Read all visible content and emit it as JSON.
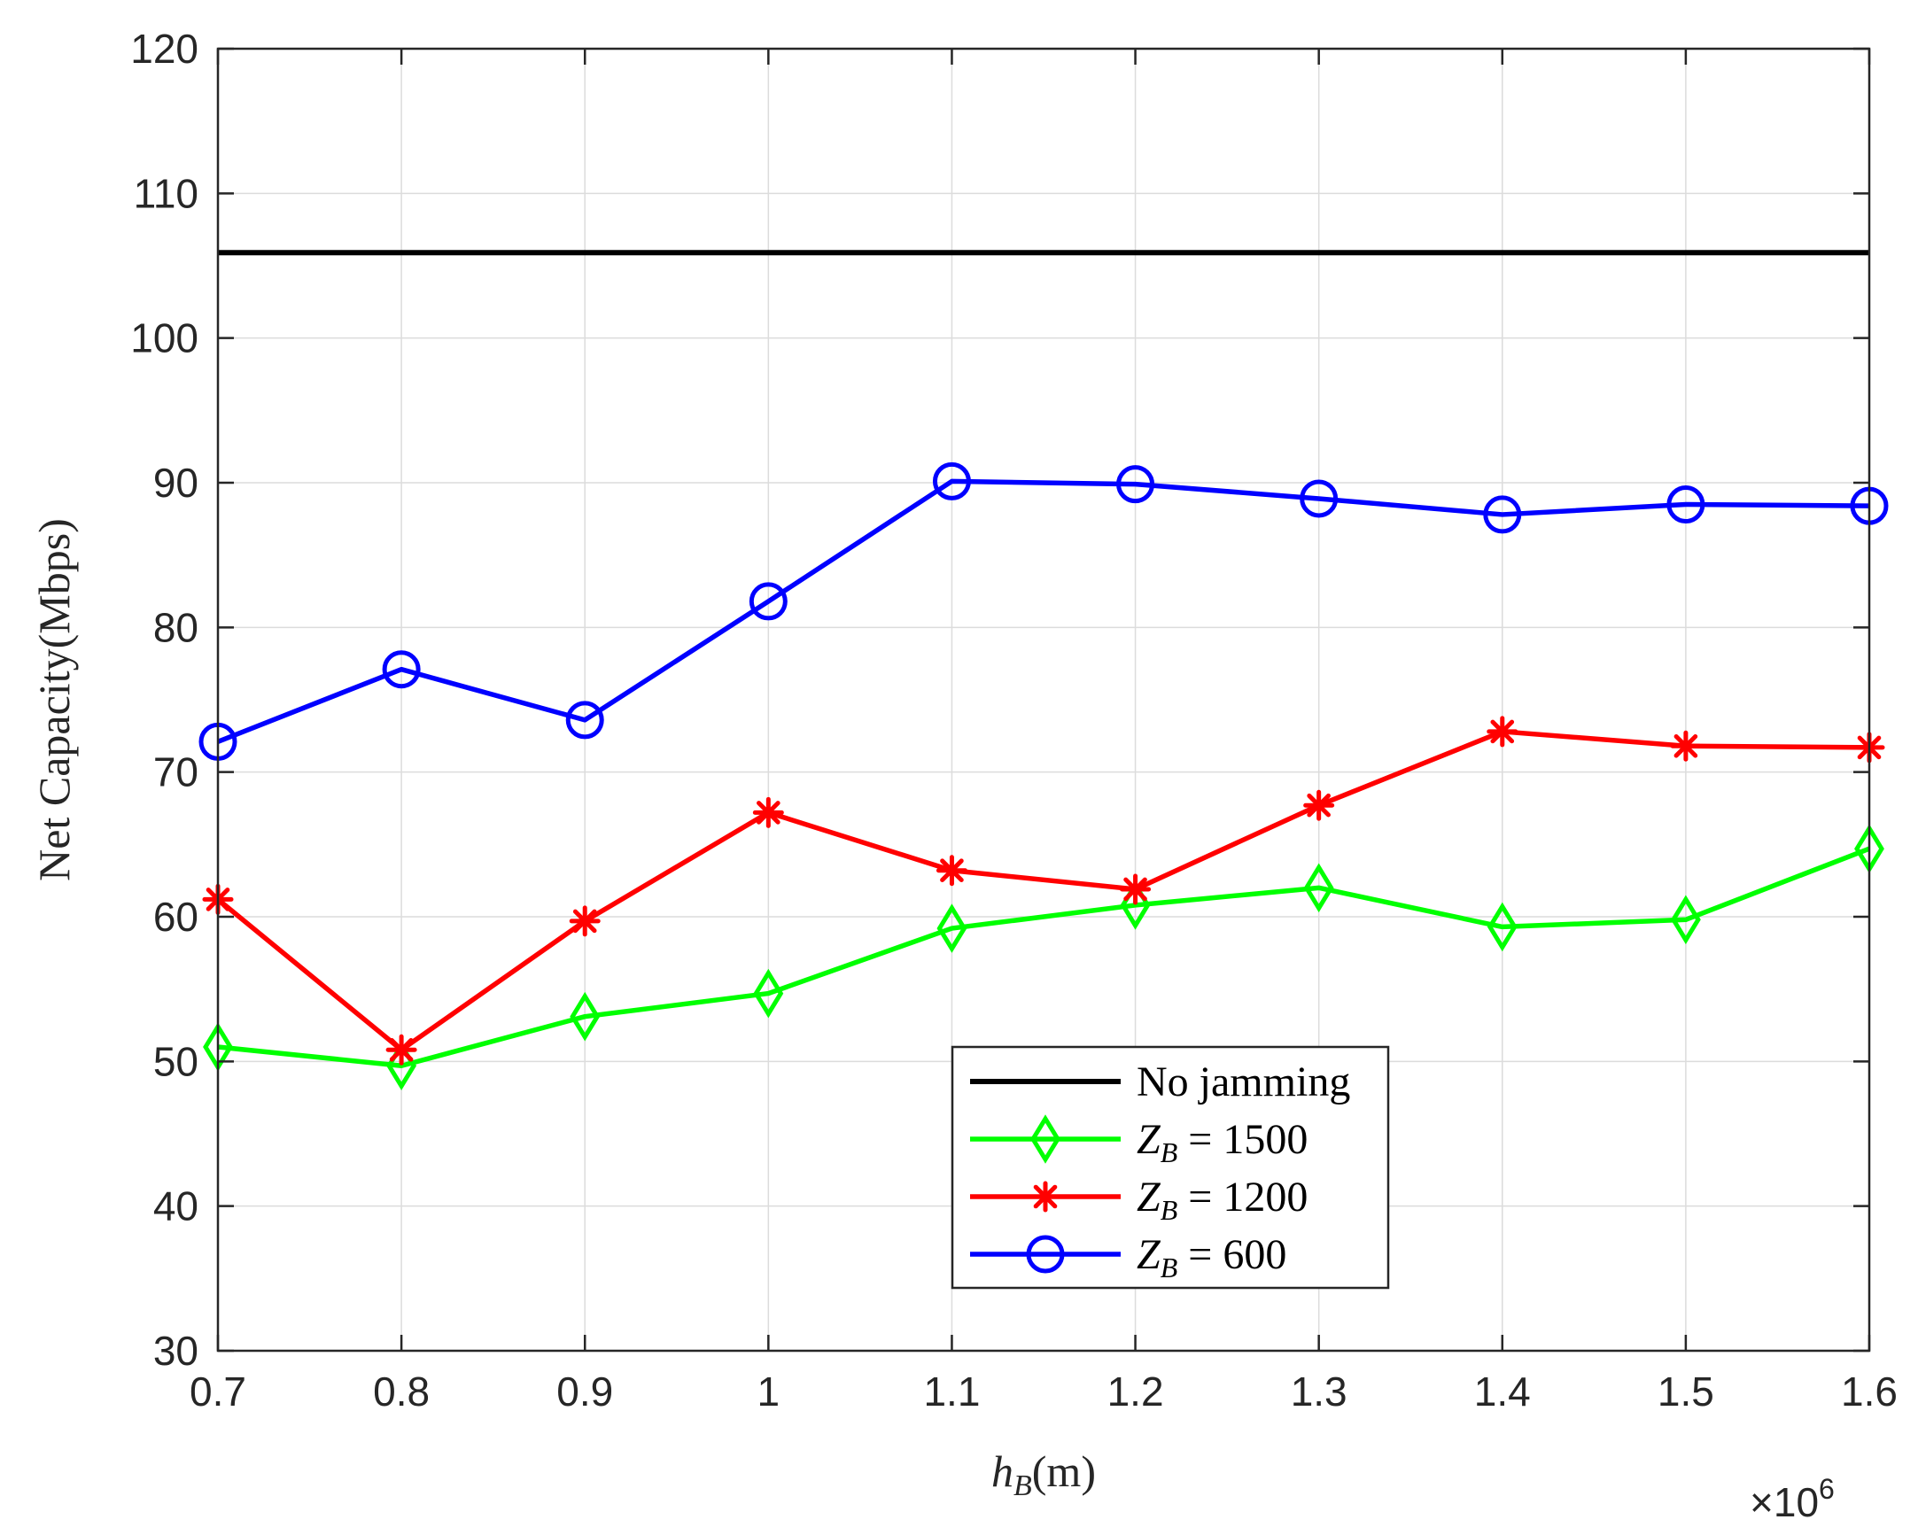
{
  "chart_data": {
    "type": "line",
    "title": "",
    "xlabel": {
      "base": "h",
      "sub": "B",
      "rest": "(m)"
    },
    "ylabel": "Net Capacity(Mbps)",
    "x_multiplier_label": "×10",
    "x_multiplier_exp": "6",
    "x": [
      0.7,
      0.8,
      0.9,
      1.0,
      1.1,
      1.2,
      1.3,
      1.4,
      1.5,
      1.6
    ],
    "x_tick_labels": [
      "0.7",
      "0.8",
      "0.9",
      "1",
      "1.1",
      "1.2",
      "1.3",
      "1.4",
      "1.5",
      "1.6"
    ],
    "xlim": [
      0.7,
      1.6
    ],
    "ylim": [
      30,
      120
    ],
    "y_ticks": [
      30,
      40,
      50,
      60,
      70,
      80,
      90,
      100,
      110,
      120
    ],
    "y_tick_labels": [
      "30",
      "40",
      "50",
      "60",
      "70",
      "80",
      "90",
      "100",
      "110",
      "120"
    ],
    "grid": true,
    "legend_position": "lower-center",
    "series": [
      {
        "name": "No jamming",
        "color": "#000000",
        "marker": "none",
        "values": [
          105.9,
          105.9,
          105.9,
          105.9,
          105.9,
          105.9,
          105.9,
          105.9,
          105.9,
          105.9
        ]
      },
      {
        "name": "Z_B = 1500",
        "color": "#00ff00",
        "marker": "diamond",
        "values": [
          51.0,
          49.7,
          53.1,
          54.7,
          59.2,
          60.8,
          62.0,
          59.3,
          59.8,
          64.7
        ]
      },
      {
        "name": "Z_B = 1200",
        "color": "#ff0000",
        "marker": "asterisk",
        "values": [
          61.2,
          50.8,
          59.7,
          67.2,
          63.2,
          61.9,
          67.7,
          72.8,
          71.8,
          71.7
        ]
      },
      {
        "name": "Z_B = 600",
        "color": "#0000ff",
        "marker": "circle",
        "values": [
          72.1,
          77.1,
          73.6,
          81.8,
          90.1,
          89.9,
          88.9,
          87.8,
          88.5,
          88.4
        ]
      }
    ],
    "legend": [
      {
        "label": "No jamming",
        "math": false
      },
      {
        "label": "Z_B = 1500",
        "math": true,
        "base": "Z",
        "sub": "B",
        "rest": " = 1500"
      },
      {
        "label": "Z_B = 1200",
        "math": true,
        "base": "Z",
        "sub": "B",
        "rest": " = 1200"
      },
      {
        "label": "Z_B = 600",
        "math": true,
        "base": "Z",
        "sub": "B",
        "rest": " = 600"
      }
    ]
  }
}
